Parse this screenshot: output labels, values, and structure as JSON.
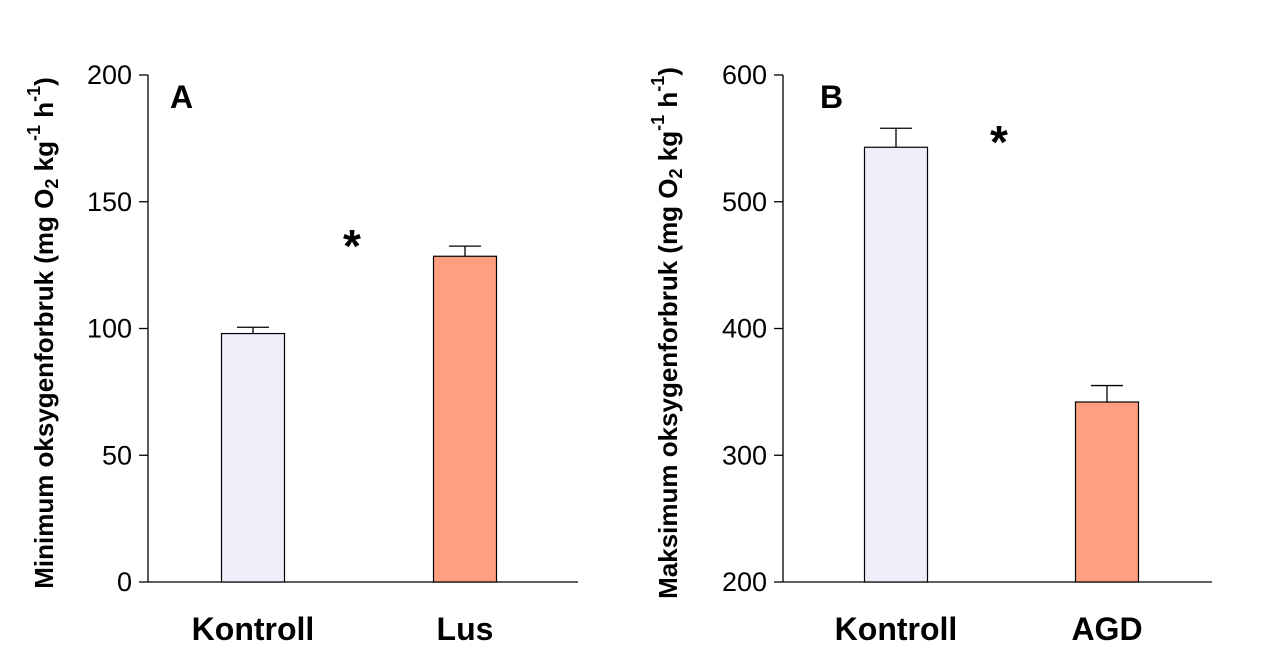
{
  "chart_data": [
    {
      "type": "bar",
      "panel_label": "A",
      "categories": [
        "Kontroll",
        "Lus"
      ],
      "values": [
        98,
        128.5
      ],
      "errors": [
        2.5,
        4
      ],
      "colors": [
        "#eeeefa",
        "#fe9f7f"
      ],
      "ylim": [
        0,
        200
      ],
      "yticks": [
        0,
        50,
        100,
        150,
        200
      ],
      "ylabel": {
        "pre": "Minimum oksygenforbruk (mg O",
        "sub": "2",
        "mid": " kg",
        "sup1": "-1",
        "mid2": " h",
        "sup2": "-1",
        "post": ")"
      },
      "significance": "*",
      "grid": false,
      "xlabel": ""
    },
    {
      "type": "bar",
      "panel_label": "B",
      "categories": [
        "Kontroll",
        "AGD"
      ],
      "values": [
        543,
        342
      ],
      "errors": [
        15,
        13
      ],
      "colors": [
        "#eeeefa",
        "#fe9f7f"
      ],
      "ylim": [
        200,
        600
      ],
      "yticks": [
        200,
        300,
        400,
        500,
        600
      ],
      "ylabel": {
        "pre": "Maksimum oksygenforbruk (mg O",
        "sub": "2",
        "mid": " kg",
        "sup1": "-1",
        "mid2": " h",
        "sup2": "-1",
        "post": ")"
      },
      "significance": "*",
      "grid": false,
      "xlabel": ""
    }
  ]
}
